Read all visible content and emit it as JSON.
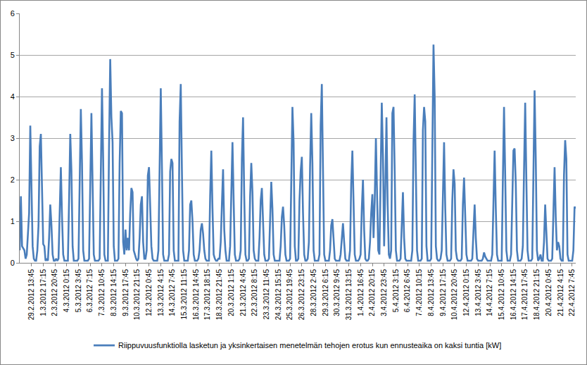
{
  "chart_data": {
    "type": "line",
    "categories": [
      null,
      null,
      null,
      null,
      null,
      null,
      null,
      null,
      null,
      null,
      "29.2.2012 13:45",
      null,
      null,
      null,
      null,
      null,
      null,
      null,
      null,
      null,
      "1.3.2012 17:15",
      null,
      null,
      null,
      null,
      null,
      null,
      null,
      null,
      null,
      "2.3.2012 20:45",
      null,
      null,
      null,
      null,
      null,
      null,
      null,
      null,
      null,
      "4.3.2012 0:15",
      null,
      null,
      null,
      null,
      null,
      null,
      null,
      null,
      null,
      "5.3.2012 3:45",
      null,
      null,
      null,
      null,
      null,
      null,
      null,
      null,
      null,
      "6.3.2012 7:15",
      null,
      null,
      null,
      null,
      null,
      null,
      null,
      null,
      null,
      "7.3.2012 10:45",
      null,
      null,
      null,
      null,
      null,
      null,
      null,
      null,
      null,
      "8.3.2012 14:15",
      null,
      null,
      null,
      null,
      null,
      null,
      null,
      null,
      null,
      "9.3.2012 17:45",
      null,
      null,
      null,
      null,
      null,
      null,
      null,
      null,
      null,
      "10.3.2012 21:15",
      null,
      null,
      null,
      null,
      null,
      null,
      null,
      null,
      null,
      "12.3.2012 0:45",
      null,
      null,
      null,
      null,
      null,
      null,
      null,
      null,
      null,
      "13.3.2012 4:15",
      null,
      null,
      null,
      null,
      null,
      null,
      null,
      null,
      null,
      "14.3.2012 7:45",
      null,
      null,
      null,
      null,
      null,
      null,
      null,
      null,
      null,
      "15.3.2012 11:15",
      null,
      null,
      null,
      null,
      null,
      null,
      null,
      null,
      null,
      "16.3.2012 14:45",
      null,
      null,
      null,
      null,
      null,
      null,
      null,
      null,
      null,
      "17.3.2012 18:15",
      null,
      null,
      null,
      null,
      null,
      null,
      null,
      null,
      null,
      "18.3.2012 21:45",
      null,
      null,
      null,
      null,
      null,
      null,
      null,
      null,
      null,
      "20.3.2012 1:15",
      null,
      null,
      null,
      null,
      null,
      null,
      null,
      null,
      null,
      "21.3.2012 4:45",
      null,
      null,
      null,
      null,
      null,
      null,
      null,
      null,
      null,
      "22.3.2012 8:15",
      null,
      null,
      null,
      null,
      null,
      null,
      null,
      null,
      null,
      "23.3.2012 11:45",
      null,
      null,
      null,
      null,
      null,
      null,
      null,
      null,
      null,
      "24.3.2012 15:15",
      null,
      null,
      null,
      null,
      null,
      null,
      null,
      null,
      null,
      "25.3.2012 19:45",
      null,
      null,
      null,
      null,
      null,
      null,
      null,
      null,
      null,
      "26.3.2012 23:15",
      null,
      null,
      null,
      null,
      null,
      null,
      null,
      null,
      null,
      "28.3.2012 2:45",
      null,
      null,
      null,
      null,
      null,
      null,
      null,
      null,
      null,
      "29.3.2012 6:15",
      null,
      null,
      null,
      null,
      null,
      null,
      null,
      null,
      null,
      "30.3.2012 9:45",
      null,
      null,
      null,
      null,
      null,
      null,
      null,
      null,
      null,
      "31.3.2012 13:15",
      null,
      null,
      null,
      null,
      null,
      null,
      null,
      null,
      null,
      "1.4.2012 16:45",
      null,
      null,
      null,
      null,
      null,
      null,
      null,
      null,
      null,
      "2.4.2012 20:15",
      null,
      null,
      null,
      null,
      null,
      null,
      null,
      null,
      null,
      "3.4.2012 23:45",
      null,
      null,
      null,
      null,
      null,
      null,
      null,
      null,
      null,
      "5.4.2012 3:15",
      null,
      null,
      null,
      null,
      null,
      null,
      null,
      null,
      null,
      "6.4.2012 6:45",
      null,
      null,
      null,
      null,
      null,
      null,
      null,
      null,
      null,
      "7.4.2012 10:15",
      null,
      null,
      null,
      null,
      null,
      null,
      null,
      null,
      null,
      "8.4.2012 13:45",
      null,
      null,
      null,
      null,
      null,
      null,
      null,
      null,
      null,
      "9.4.2012 17:15",
      null,
      null,
      null,
      null,
      null,
      null,
      null,
      null,
      null,
      "10.4.2012 20:45",
      null,
      null,
      null,
      null,
      null,
      null,
      null,
      null,
      null,
      "12.4.2012 0:15",
      null,
      null,
      null,
      null,
      null,
      null,
      null,
      null,
      null,
      "13.4.2012 3:45",
      null,
      null,
      null,
      null,
      null,
      null,
      null,
      null,
      null,
      "14.4.2012 7:15",
      null,
      null,
      null,
      null,
      null,
      null,
      null,
      null,
      null,
      "15.4.2012 10:45",
      null,
      null,
      null,
      null,
      null,
      null,
      null,
      null,
      null,
      "16.4.2012 14:15",
      null,
      null,
      null,
      null,
      null,
      null,
      null,
      null,
      null,
      "17.4.2012 17:45",
      null,
      null,
      null,
      null,
      null,
      null,
      null,
      null,
      null,
      "18.4.2012 21:15",
      null,
      null,
      null,
      null,
      null,
      null,
      null,
      null,
      null,
      "20.4.2012 0:45",
      null,
      null,
      null,
      null,
      null,
      null,
      null,
      null,
      null,
      "21.4.2012 4:15",
      null,
      null,
      null,
      null,
      null,
      null,
      null,
      null,
      null,
      "22.4.2012 7:45",
      null,
      null,
      null
    ],
    "series": [
      {
        "name": "Riippuvuusfunktiolla lasketun ja yksinkertaisen menetelmän tehojen erotus kun ennusteaika on kaksi tuntia [kW]",
        "color": "#4a7ebb",
        "values": [
          0.3,
          1.6,
          0.4,
          0.35,
          0.3,
          0.1,
          0.2,
          0.7,
          1.2,
          3.3,
          2.0,
          0.4,
          0.1,
          0.05,
          0.05,
          0.3,
          0.9,
          2.8,
          3.1,
          1.5,
          0.45,
          0.4,
          0.05,
          0.1,
          0.05,
          0.6,
          1.4,
          0.9,
          0.2,
          0.05,
          0.05,
          0.1,
          0.05,
          0.1,
          1.2,
          2.3,
          1.1,
          0.2,
          0.05,
          0.05,
          0.05,
          0.05,
          1.5,
          3.1,
          2.2,
          0.4,
          0.05,
          0.05,
          0.05,
          0.05,
          0.1,
          2.2,
          3.7,
          2.4,
          0.3,
          0.05,
          0.05,
          0.05,
          0.05,
          0.1,
          2.0,
          3.6,
          1.9,
          0.2,
          0.05,
          0.05,
          0.05,
          0.05,
          0.1,
          2.6,
          4.2,
          2.5,
          0.2,
          0.05,
          0.05,
          0.05,
          2.8,
          4.9,
          3.5,
          2.9,
          0.4,
          0.05,
          0.05,
          0.05,
          0.1,
          2.4,
          3.65,
          3.6,
          0.5,
          0.2,
          0.8,
          0.3,
          0.6,
          0.3,
          1.2,
          1.8,
          1.7,
          0.3,
          0.2,
          0.1,
          0.05,
          0.1,
          0.6,
          1.4,
          1.6,
          0.5,
          0.1,
          0.1,
          0.3,
          2.1,
          2.3,
          1.5,
          0.4,
          0.1,
          0.05,
          0.05,
          0.05,
          0.05,
          0.3,
          2.6,
          4.2,
          2.3,
          0.2,
          0.05,
          0.05,
          0.05,
          0.05,
          0.2,
          2.2,
          2.5,
          2.4,
          0.3,
          0.05,
          0.05,
          0.05,
          0.05,
          3.4,
          4.3,
          2.2,
          0.3,
          0.05,
          0.05,
          0.05,
          0.05,
          0.3,
          1.4,
          1.5,
          1.0,
          0.2,
          0.05,
          0.05,
          0.05,
          0.1,
          0.3,
          0.8,
          0.95,
          0.7,
          0.3,
          0.1,
          0.05,
          0.05,
          0.05,
          1.6,
          2.7,
          1.3,
          0.2,
          0.1,
          0.05,
          0.05,
          0.1,
          0.1,
          0.5,
          1.4,
          2.25,
          0.8,
          0.3,
          0.05,
          0.05,
          0.05,
          0.4,
          1.8,
          2.9,
          1.5,
          0.2,
          0.05,
          0.05,
          0.05,
          0.1,
          0.3,
          2.5,
          3.5,
          1.6,
          0.2,
          0.05,
          0.05,
          0.1,
          1.6,
          2.4,
          1.7,
          0.3,
          0.1,
          0.05,
          0.05,
          0.05,
          0.6,
          1.5,
          1.8,
          1.0,
          0.2,
          0.05,
          0.05,
          0.05,
          0.1,
          1.2,
          1.95,
          1.3,
          0.2,
          0.05,
          0.05,
          0.05,
          0.05,
          0.05,
          0.4,
          1.1,
          1.35,
          0.9,
          0.2,
          0.05,
          0.05,
          0.05,
          0.1,
          2.2,
          3.75,
          2.9,
          0.4,
          0.05,
          0.05,
          0.1,
          1.5,
          2.2,
          2.55,
          1.2,
          0.2,
          0.05,
          0.05,
          0.1,
          0.5,
          2.3,
          3.6,
          2.4,
          0.3,
          0.05,
          0.05,
          0.05,
          0.05,
          0.2,
          3.3,
          4.3,
          2.1,
          0.2,
          0.05,
          0.05,
          0.05,
          0.05,
          0.3,
          0.9,
          1.05,
          0.6,
          0.1,
          0.05,
          0.05,
          0.05,
          0.05,
          0.2,
          0.6,
          0.95,
          0.5,
          0.1,
          0.05,
          0.05,
          0.05,
          0.3,
          1.9,
          2.7,
          1.2,
          0.2,
          0.05,
          0.05,
          0.05,
          0.1,
          0.2,
          1.3,
          2.0,
          0.8,
          0.1,
          0.05,
          0.05,
          0.1,
          0.5,
          1.2,
          1.65,
          0.6,
          1.5,
          3.0,
          1.8,
          0.3,
          0.2,
          2.4,
          3.85,
          2.6,
          0.4,
          1.8,
          3.5,
          1.4,
          0.2,
          0.1,
          0.3,
          3.6,
          3.75,
          2.2,
          0.3,
          0.05,
          0.05,
          0.05,
          0.1,
          0.9,
          1.7,
          0.6,
          0.1,
          0.05,
          0.05,
          0.05,
          0.05,
          0.05,
          0.3,
          2.9,
          4.05,
          2.2,
          0.3,
          0.05,
          0.05,
          0.05,
          0.1,
          3.2,
          3.75,
          3.4,
          0.4,
          0.05,
          0.05,
          0.05,
          0.1,
          3.3,
          5.25,
          4.0,
          0.4,
          0.1,
          0.05,
          0.05,
          0.1,
          0.3,
          1.8,
          2.9,
          1.3,
          0.2,
          0.05,
          0.05,
          0.05,
          0.1,
          1.5,
          2.25,
          1.9,
          0.3,
          0.1,
          0.05,
          0.05,
          0.05,
          0.1,
          1.4,
          2.05,
          1.1,
          0.2,
          0.05,
          0.05,
          0.05,
          0.05,
          0.1,
          0.9,
          1.4,
          0.6,
          0.1,
          0.05,
          0.05,
          0.05,
          0.05,
          0.1,
          0.25,
          0.15,
          0.1,
          0.05,
          0.05,
          0.05,
          0.05,
          0.2,
          1.6,
          2.7,
          1.3,
          0.2,
          0.05,
          0.05,
          0.05,
          0.05,
          2.0,
          3.75,
          2.1,
          0.3,
          0.05,
          0.05,
          0.05,
          0.2,
          1.5,
          2.7,
          2.75,
          1.9,
          0.3,
          0.05,
          0.05,
          0.05,
          0.1,
          0.4,
          2.2,
          3.85,
          2.0,
          0.3,
          0.05,
          0.05,
          0.05,
          0.1,
          2.4,
          4.15,
          2.5,
          0.3,
          0.05,
          0.1,
          0.2,
          0.05,
          0.05,
          0.5,
          1.4,
          0.6,
          0.1,
          0.05,
          0.05,
          0.05,
          0.1,
          1.2,
          2.3,
          1.1,
          0.3,
          0.5,
          0.4,
          0.1,
          0.05,
          0.05,
          2.1,
          2.95,
          2.5,
          0.2,
          0.05,
          0.05,
          0.05,
          0.05,
          0.3,
          1.35,
          1.3
        ]
      }
    ],
    "ylim": [
      0,
      6
    ],
    "yticks": [
      0,
      1,
      2,
      3,
      4,
      5,
      6
    ],
    "grid": true,
    "legend": "bottom"
  }
}
